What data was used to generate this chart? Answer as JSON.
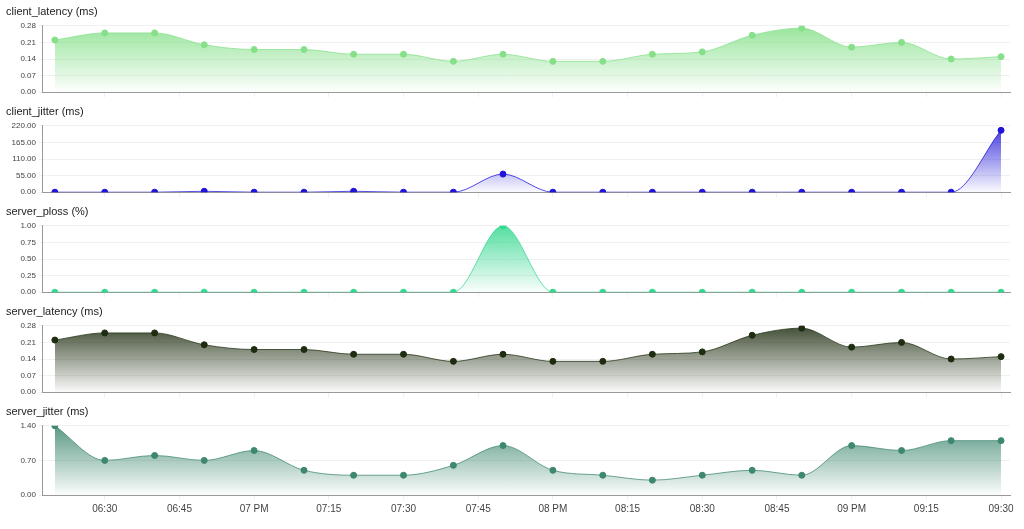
{
  "chart_data": [
    {
      "type": "area",
      "title": "client_latency (ms)",
      "x": [
        6.333,
        6.5,
        6.667,
        6.833,
        7,
        7.167,
        7.333,
        7.5,
        7.667,
        7.833,
        8,
        8.167,
        8.333,
        8.5,
        8.667,
        8.833,
        9,
        9.167,
        9.333,
        9.5
      ],
      "values": [
        0.22,
        0.25,
        0.25,
        0.2,
        0.18,
        0.18,
        0.16,
        0.16,
        0.13,
        0.16,
        0.13,
        0.13,
        0.16,
        0.17,
        0.24,
        0.27,
        0.19,
        0.21,
        0.14,
        0.15
      ],
      "color": "#86e08a",
      "xlim": [
        6.29,
        9.53
      ],
      "ylim": [
        0,
        0.28
      ],
      "yticks": [
        {
          "value": 0,
          "label": "0.00"
        },
        {
          "value": 0.07,
          "label": "0.07"
        },
        {
          "value": 0.14,
          "label": "0.14"
        },
        {
          "value": 0.21,
          "label": "0.21"
        },
        {
          "value": 0.28,
          "label": "0.28"
        }
      ],
      "xticks": [
        {
          "value": 6.5,
          "label": null
        },
        {
          "value": 6.75,
          "label": null
        },
        {
          "value": 7,
          "label": null
        },
        {
          "value": 7.25,
          "label": null
        },
        {
          "value": 7.5,
          "label": null
        },
        {
          "value": 7.75,
          "label": null
        },
        {
          "value": 8,
          "label": null
        },
        {
          "value": 8.25,
          "label": null
        },
        {
          "value": 8.5,
          "label": null
        },
        {
          "value": 8.75,
          "label": null
        },
        {
          "value": 9,
          "label": null
        },
        {
          "value": 9.25,
          "label": null
        },
        {
          "value": 9.5,
          "label": null
        }
      ],
      "tick_labels": "y",
      "grid": "y",
      "marker": "circle"
    },
    {
      "type": "area",
      "title": "client_jitter (ms)",
      "x": [
        6.333,
        6.5,
        6.667,
        6.833,
        7,
        7.167,
        7.333,
        7.5,
        7.667,
        7.833,
        8,
        8.167,
        8.333,
        8.5,
        8.667,
        8.833,
        9,
        9.167,
        9.333,
        9.5
      ],
      "values": [
        0,
        0,
        0,
        3,
        0,
        0,
        3,
        0,
        0,
        60,
        0,
        0,
        0,
        0,
        0,
        0,
        0,
        0,
        0,
        205
      ],
      "color": "#1f14d8",
      "xlim": [
        6.29,
        9.53
      ],
      "ylim": [
        0,
        220
      ],
      "yticks": [
        {
          "value": 0,
          "label": "0.00"
        },
        {
          "value": 55,
          "label": "55.00"
        },
        {
          "value": 110,
          "label": "110.00"
        },
        {
          "value": 165,
          "label": "165.00"
        },
        {
          "value": 220,
          "label": "220.00"
        }
      ],
      "xticks": [
        {
          "value": 6.5,
          "label": null
        },
        {
          "value": 6.75,
          "label": null
        },
        {
          "value": 7,
          "label": null
        },
        {
          "value": 7.25,
          "label": null
        },
        {
          "value": 7.5,
          "label": null
        },
        {
          "value": 7.75,
          "label": null
        },
        {
          "value": 8,
          "label": null
        },
        {
          "value": 8.25,
          "label": null
        },
        {
          "value": 8.5,
          "label": null
        },
        {
          "value": 8.75,
          "label": null
        },
        {
          "value": 9,
          "label": null
        },
        {
          "value": 9.25,
          "label": null
        },
        {
          "value": 9.5,
          "label": null
        }
      ],
      "tick_labels": "y",
      "grid": "y",
      "marker": "circle"
    },
    {
      "type": "area",
      "title": "server_ploss (%)",
      "x": [
        6.333,
        6.5,
        6.667,
        6.833,
        7,
        7.167,
        7.333,
        7.5,
        7.667,
        7.833,
        8,
        8.167,
        8.333,
        8.5,
        8.667,
        8.833,
        9,
        9.167,
        9.333,
        9.5
      ],
      "values": [
        0,
        0,
        0,
        0,
        0,
        0,
        0,
        0,
        0,
        1,
        0,
        0,
        0,
        0,
        0,
        0,
        0,
        0,
        0,
        0
      ],
      "color": "#35d88f",
      "xlim": [
        6.29,
        9.53
      ],
      "ylim": [
        0,
        1
      ],
      "yticks": [
        {
          "value": 0,
          "label": "0.00"
        },
        {
          "value": 0.25,
          "label": "0.25"
        },
        {
          "value": 0.5,
          "label": "0.50"
        },
        {
          "value": 0.75,
          "label": "0.75"
        },
        {
          "value": 1,
          "label": "1.00"
        }
      ],
      "xticks": [
        {
          "value": 6.5,
          "label": null
        },
        {
          "value": 6.75,
          "label": null
        },
        {
          "value": 7,
          "label": null
        },
        {
          "value": 7.25,
          "label": null
        },
        {
          "value": 7.5,
          "label": null
        },
        {
          "value": 7.75,
          "label": null
        },
        {
          "value": 8,
          "label": null
        },
        {
          "value": 8.25,
          "label": null
        },
        {
          "value": 8.5,
          "label": null
        },
        {
          "value": 8.75,
          "label": null
        },
        {
          "value": 9,
          "label": null
        },
        {
          "value": 9.25,
          "label": null
        },
        {
          "value": 9.5,
          "label": null
        }
      ],
      "tick_labels": "y",
      "grid": "y",
      "marker": "circle"
    },
    {
      "type": "area",
      "title": "server_latency (ms)",
      "x": [
        6.333,
        6.5,
        6.667,
        6.833,
        7,
        7.167,
        7.333,
        7.5,
        7.667,
        7.833,
        8,
        8.167,
        8.333,
        8.5,
        8.667,
        8.833,
        9,
        9.167,
        9.333,
        9.5
      ],
      "values": [
        0.22,
        0.25,
        0.25,
        0.2,
        0.18,
        0.18,
        0.16,
        0.16,
        0.13,
        0.16,
        0.13,
        0.13,
        0.16,
        0.17,
        0.24,
        0.27,
        0.19,
        0.21,
        0.14,
        0.15
      ],
      "color": "#1e2d10",
      "xlim": [
        6.29,
        9.53
      ],
      "ylim": [
        0,
        0.28
      ],
      "yticks": [
        {
          "value": 0,
          "label": "0.00"
        },
        {
          "value": 0.07,
          "label": "0.07"
        },
        {
          "value": 0.14,
          "label": "0.14"
        },
        {
          "value": 0.21,
          "label": "0.21"
        },
        {
          "value": 0.28,
          "label": "0.28"
        }
      ],
      "xticks": [
        {
          "value": 6.5,
          "label": null
        },
        {
          "value": 6.75,
          "label": null
        },
        {
          "value": 7,
          "label": null
        },
        {
          "value": 7.25,
          "label": null
        },
        {
          "value": 7.5,
          "label": null
        },
        {
          "value": 7.75,
          "label": null
        },
        {
          "value": 8,
          "label": null
        },
        {
          "value": 8.25,
          "label": null
        },
        {
          "value": 8.5,
          "label": null
        },
        {
          "value": 8.75,
          "label": null
        },
        {
          "value": 9,
          "label": null
        },
        {
          "value": 9.25,
          "label": null
        },
        {
          "value": 9.5,
          "label": null
        }
      ],
      "tick_labels": "y",
      "grid": "y",
      "marker": "circle"
    },
    {
      "type": "area",
      "title": "server_jitter (ms)",
      "x": [
        6.333,
        6.5,
        6.667,
        6.833,
        7,
        7.167,
        7.333,
        7.5,
        7.667,
        7.833,
        8,
        8.167,
        8.333,
        8.5,
        8.667,
        8.833,
        9,
        9.167,
        9.333,
        9.5
      ],
      "values": [
        1.4,
        0.7,
        0.8,
        0.7,
        0.9,
        0.5,
        0.4,
        0.4,
        0.6,
        1.0,
        0.5,
        0.4,
        0.3,
        0.4,
        0.5,
        0.4,
        1.0,
        0.9,
        1.1,
        1.1
      ],
      "color": "#3e8770",
      "xlim": [
        6.29,
        9.53
      ],
      "ylim": [
        0,
        1.4
      ],
      "yticks": [
        {
          "value": 0,
          "label": "0.00"
        },
        {
          "value": 0.7,
          "label": "0.70"
        },
        {
          "value": 1.4,
          "label": "1.40"
        }
      ],
      "xticks": [
        {
          "value": 6.5,
          "label": "06:30"
        },
        {
          "value": 6.75,
          "label": "06:45"
        },
        {
          "value": 7,
          "label": "07 PM"
        },
        {
          "value": 7.25,
          "label": "07:15"
        },
        {
          "value": 7.5,
          "label": "07:30"
        },
        {
          "value": 7.75,
          "label": "07:45"
        },
        {
          "value": 8,
          "label": "08 PM"
        },
        {
          "value": 8.25,
          "label": "08:15"
        },
        {
          "value": 8.5,
          "label": "08:30"
        },
        {
          "value": 8.75,
          "label": "08:45"
        },
        {
          "value": 9,
          "label": "09 PM"
        },
        {
          "value": 9.25,
          "label": "09:15"
        },
        {
          "value": 9.5,
          "label": "09:30"
        }
      ],
      "grid": "y",
      "marker": "circle"
    }
  ]
}
